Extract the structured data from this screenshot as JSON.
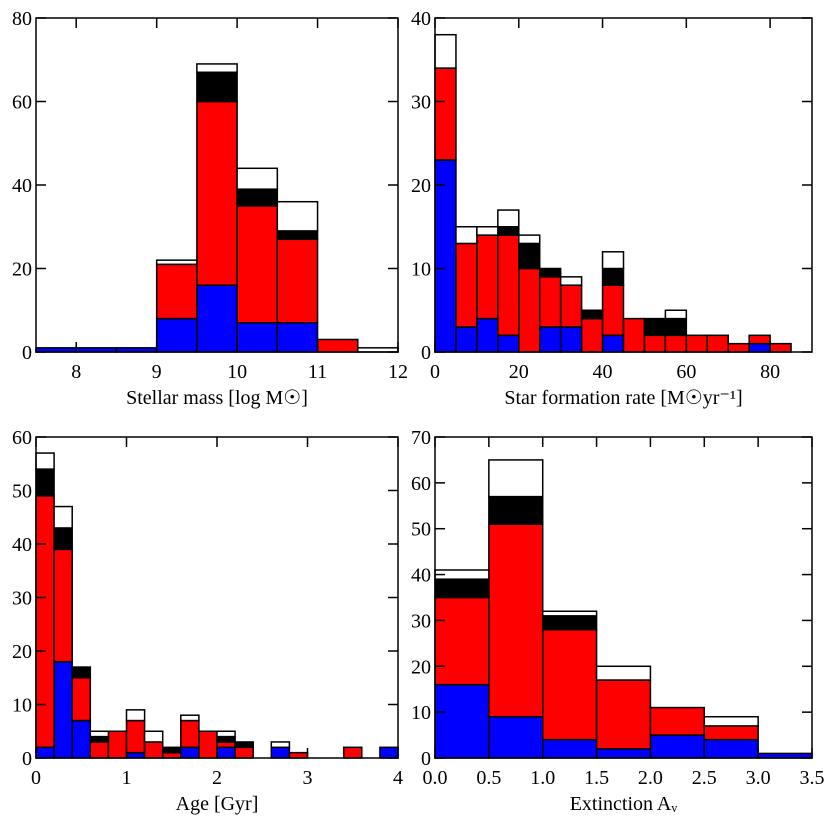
{
  "chart_data": [
    {
      "type": "histogram",
      "xlabel": "Stellar mass [log M☉]",
      "bins": [
        7.5,
        8,
        8.5,
        9,
        9.5,
        10,
        10.5,
        11,
        11.5,
        12
      ],
      "series": [
        {
          "color": "#0000ff",
          "values": [
            1,
            1,
            1,
            8,
            16,
            7,
            7,
            0,
            0
          ]
        },
        {
          "color": "#ff0000",
          "values": [
            0,
            0,
            0,
            13,
            44,
            28,
            20,
            3,
            0
          ]
        },
        {
          "color": "#000000",
          "values": [
            0,
            0,
            0,
            0,
            7,
            4,
            2,
            0,
            0
          ]
        },
        {
          "color": "#ffffff",
          "values": [
            0,
            0,
            0,
            1,
            2,
            5,
            7,
            0,
            1
          ]
        }
      ],
      "xlim": [
        7.5,
        12
      ],
      "xticks": [
        8,
        9,
        10,
        11,
        12
      ],
      "ylim": [
        0,
        80
      ],
      "yticks": [
        0,
        20,
        40,
        60,
        80
      ]
    },
    {
      "type": "histogram",
      "xlabel": "Star formation rate [M☉yr⁻¹]",
      "bins": [
        0,
        5,
        10,
        15,
        20,
        25,
        30,
        35,
        40,
        45,
        50,
        55,
        60,
        65,
        70,
        75,
        80,
        85
      ],
      "series": [
        {
          "color": "#0000ff",
          "values": [
            23,
            3,
            4,
            2,
            0,
            3,
            3,
            0,
            2,
            0,
            0,
            0,
            0,
            0,
            0,
            1,
            0
          ]
        },
        {
          "color": "#ff0000",
          "values": [
            11,
            10,
            10,
            12,
            10,
            6,
            5,
            4,
            6,
            4,
            2,
            2,
            2,
            2,
            1,
            1,
            1
          ]
        },
        {
          "color": "#000000",
          "values": [
            0,
            0,
            0,
            1,
            3,
            1,
            0,
            1,
            2,
            0,
            2,
            2,
            0,
            0,
            0,
            0,
            0
          ]
        },
        {
          "color": "#ffffff",
          "values": [
            4,
            2,
            1,
            2,
            1,
            0,
            1,
            0,
            2,
            0,
            0,
            1,
            0,
            0,
            0,
            0,
            0
          ]
        }
      ],
      "xlim": [
        0,
        90
      ],
      "xticks": [
        0,
        20,
        40,
        60,
        80
      ],
      "ylim": [
        0,
        40
      ],
      "yticks": [
        0,
        10,
        20,
        30,
        40
      ]
    },
    {
      "type": "histogram",
      "xlabel": "Age [Gyr]",
      "bins": [
        0,
        0.2,
        0.4,
        0.6,
        0.8,
        1.0,
        1.2,
        1.4,
        1.6,
        1.8,
        2.0,
        2.2,
        2.4,
        2.6,
        2.8,
        3.0,
        3.2,
        3.4,
        3.6,
        3.8,
        4.0
      ],
      "series": [
        {
          "color": "#0000ff",
          "values": [
            2,
            18,
            7,
            0,
            0,
            1,
            0,
            0,
            2,
            0,
            2,
            0,
            0,
            2,
            0,
            0,
            0,
            0,
            0,
            2
          ]
        },
        {
          "color": "#ff0000",
          "values": [
            47,
            21,
            8,
            3,
            5,
            6,
            3,
            1,
            5,
            5,
            1,
            2,
            0,
            0,
            1,
            0,
            0,
            2,
            0,
            0
          ]
        },
        {
          "color": "#000000",
          "values": [
            5,
            4,
            2,
            1,
            0,
            0,
            0,
            1,
            0,
            0,
            1,
            1,
            0,
            0,
            0,
            0,
            0,
            0,
            0,
            0
          ]
        },
        {
          "color": "#ffffff",
          "values": [
            3,
            4,
            0,
            1,
            0,
            2,
            2,
            0,
            1,
            0,
            1,
            0,
            0,
            1,
            0,
            0,
            0,
            0,
            0,
            0
          ]
        }
      ],
      "xlim": [
        0,
        4
      ],
      "xticks": [
        0,
        1,
        2,
        3,
        4
      ],
      "ylim": [
        0,
        60
      ],
      "yticks": [
        0,
        10,
        20,
        30,
        40,
        50,
        60
      ]
    },
    {
      "type": "histogram",
      "xlabel": "Extinction Aᵥ",
      "bins": [
        0,
        0.5,
        1,
        1.5,
        2,
        2.5,
        3,
        3.5
      ],
      "series": [
        {
          "color": "#0000ff",
          "values": [
            16,
            9,
            4,
            2,
            5,
            4,
            1
          ]
        },
        {
          "color": "#ff0000",
          "values": [
            19,
            42,
            24,
            15,
            6,
            3,
            0
          ]
        },
        {
          "color": "#000000",
          "values": [
            4,
            6,
            3,
            0,
            0,
            0,
            0
          ]
        },
        {
          "color": "#ffffff",
          "values": [
            2,
            8,
            1,
            3,
            0,
            2,
            0
          ]
        }
      ],
      "xlim": [
        0,
        3.5
      ],
      "xticks": [
        {
          "value": 0,
          "label": "0.0"
        },
        0.5,
        {
          "value": 1,
          "label": "1.0"
        },
        1.5,
        {
          "value": 2,
          "label": "2.0"
        },
        2.5,
        {
          "value": 3,
          "label": "3.0"
        },
        3.5
      ],
      "ylim": [
        0,
        70
      ],
      "yticks": [
        0,
        10,
        20,
        30,
        40,
        50,
        60,
        70
      ]
    }
  ]
}
